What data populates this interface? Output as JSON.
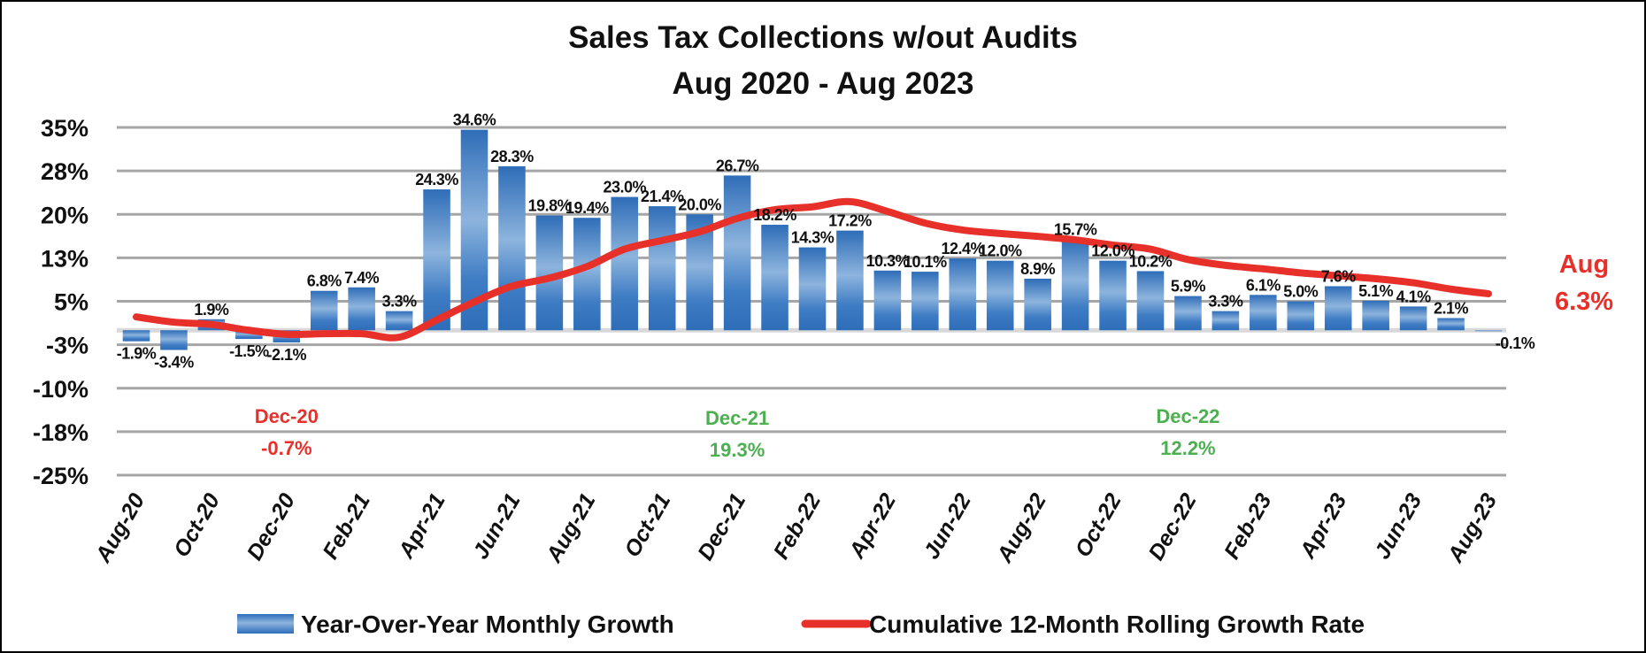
{
  "chart_data": {
    "type": "bar",
    "title": "Sales Tax Collections w/out Audits",
    "subtitle": "Aug 2020 - Aug 2023",
    "xlabel": "",
    "ylabel": "",
    "ylim": [
      -25,
      35
    ],
    "yticks": [
      35,
      27.5,
      20,
      12.5,
      5,
      -2.5,
      -10,
      -17.5,
      -25
    ],
    "ytick_labels": [
      "35%",
      "28%",
      "20%",
      "13%",
      "5%",
      "-3%",
      "-10%",
      "-18%",
      "-25%"
    ],
    "grid": true,
    "legend_position": "bottom",
    "categories": [
      "Aug-20",
      "Sep-20",
      "Oct-20",
      "Nov-20",
      "Dec-20",
      "Jan-21",
      "Feb-21",
      "Mar-21",
      "Apr-21",
      "May-21",
      "Jun-21",
      "Jul-21",
      "Aug-21",
      "Sep-21",
      "Oct-21",
      "Nov-21",
      "Dec-21",
      "Jan-22",
      "Feb-22",
      "Mar-22",
      "Apr-22",
      "May-22",
      "Jun-22",
      "Jul-22",
      "Aug-22",
      "Sep-22",
      "Oct-22",
      "Nov-22",
      "Dec-22",
      "Jan-23",
      "Feb-23",
      "Mar-23",
      "Apr-23",
      "May-23",
      "Jun-23",
      "Jul-23",
      "Aug-23"
    ],
    "xtick_labels": [
      "Aug-20",
      "Oct-20",
      "Dec-20",
      "Feb-21",
      "Apr-21",
      "Jun-21",
      "Aug-21",
      "Oct-21",
      "Dec-21",
      "Feb-22",
      "Apr-22",
      "Jun-22",
      "Aug-22",
      "Oct-22",
      "Dec-22",
      "Feb-23",
      "Apr-23",
      "Jun-23",
      "Aug-23"
    ],
    "series": [
      {
        "name": "Year-Over-Year Monthly Growth",
        "type": "bar",
        "color": "#2E6DB8",
        "values": [
          -1.9,
          -3.4,
          1.9,
          -1.5,
          -2.1,
          6.8,
          7.4,
          3.3,
          24.3,
          34.6,
          28.3,
          19.8,
          19.4,
          23.0,
          21.4,
          20.0,
          26.7,
          18.2,
          14.3,
          17.2,
          10.3,
          10.1,
          12.4,
          12.0,
          8.9,
          15.7,
          12.0,
          10.2,
          5.9,
          3.3,
          6.1,
          5.0,
          7.6,
          5.1,
          4.1,
          2.1,
          -0.1
        ],
        "labels": [
          "-1.9%",
          "-3.4%",
          "1.9%",
          "-1.5%",
          "-2.1%",
          "6.8%",
          "7.4%",
          "3.3%",
          "24.3%",
          "34.6%",
          "28.3%",
          "19.8%",
          "19.4%",
          "23.0%",
          "21.4%",
          "20.0%",
          "26.7%",
          "18.2%",
          "14.3%",
          "17.2%",
          "10.3%",
          "10.1%",
          "12.4%",
          "12.0%",
          "8.9%",
          "15.7%",
          "12.0%",
          "10.2%",
          "5.9%",
          "3.3%",
          "6.1%",
          "5.0%",
          "7.6%",
          "5.1%",
          "4.1%",
          "2.1%",
          "-0.1%"
        ]
      },
      {
        "name": "Cumulative 12-Month Rolling Growth Rate",
        "type": "line",
        "color": "#E8302A",
        "values": [
          2.3,
          1.4,
          1.0,
          0.0,
          -0.7,
          -0.6,
          -0.6,
          -1.2,
          1.8,
          4.9,
          7.6,
          9.0,
          11.0,
          14.0,
          15.5,
          17.0,
          19.3,
          20.8,
          21.3,
          22.2,
          20.5,
          18.5,
          17.3,
          16.7,
          16.2,
          15.6,
          14.7,
          14.0,
          12.2,
          11.2,
          10.6,
          9.9,
          9.4,
          8.9,
          8.2,
          7.1,
          6.3
        ]
      }
    ],
    "annotations": [
      {
        "label": "Dec-20",
        "value": "-0.7%",
        "category": "Dec-20",
        "color": "#E8302A"
      },
      {
        "label": "Dec-21",
        "value": "19.3%",
        "category": "Dec-21",
        "color": "#4CAF50"
      },
      {
        "label": "Dec-22",
        "value": "12.2%",
        "category": "Dec-22",
        "color": "#4CAF50"
      },
      {
        "label": "Aug",
        "value": "6.3%",
        "category": "Aug-23",
        "color": "#E8302A"
      }
    ]
  }
}
